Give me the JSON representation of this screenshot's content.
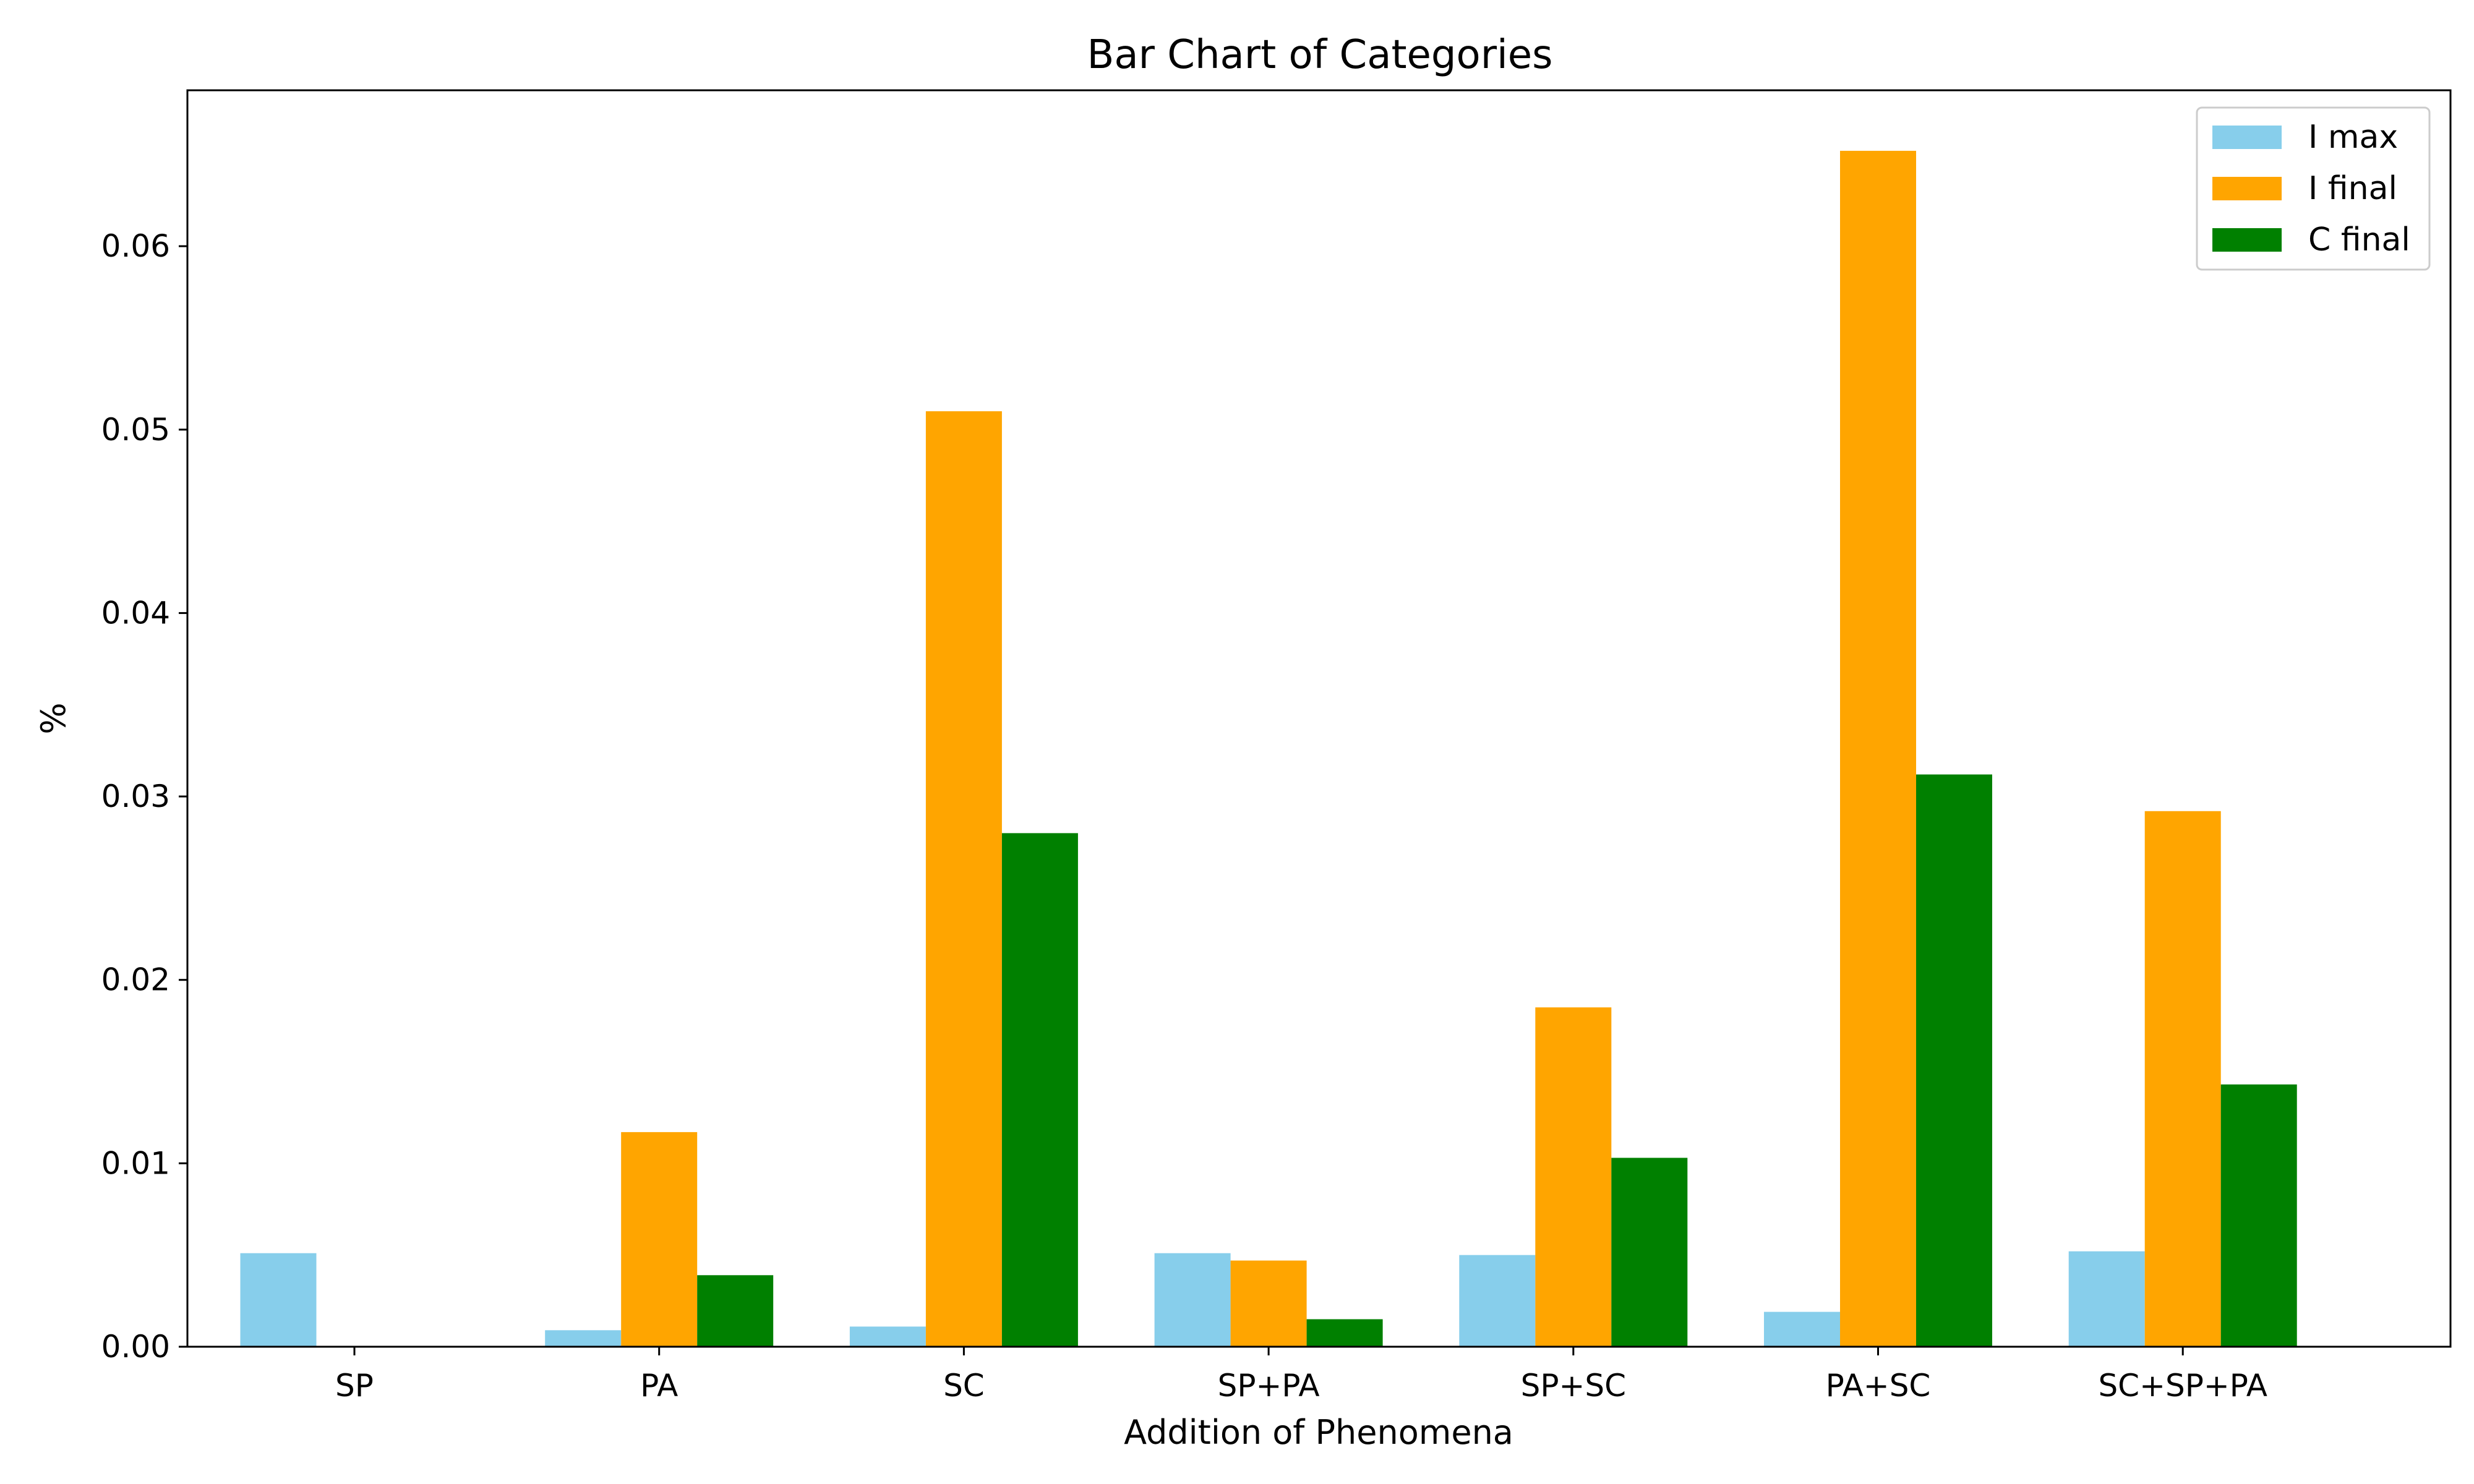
{
  "chart_data": {
    "type": "bar",
    "title": "Bar Chart of Categories",
    "xlabel": "Addition of Phenomena",
    "ylabel": "%",
    "categories": [
      "SP",
      "PA",
      "SC",
      "SP+PA",
      "SP+SC",
      "PA+SC",
      "SC+SP+PA"
    ],
    "series": [
      {
        "name": "I max",
        "color": "#87ceeb",
        "values": [
          0.0051,
          0.0009,
          0.0011,
          0.0051,
          0.005,
          0.0019,
          0.0052
        ]
      },
      {
        "name": "I final",
        "color": "#ffa500",
        "values": [
          0.0,
          0.0117,
          0.051,
          0.0047,
          0.0185,
          0.0652,
          0.0292
        ]
      },
      {
        "name": "C final",
        "color": "#008000",
        "values": [
          0.0,
          0.0039,
          0.028,
          0.0015,
          0.0103,
          0.0312,
          0.0143
        ]
      }
    ],
    "ylim": [
      0,
      0.0685
    ],
    "yticks": [
      "0.00",
      "0.01",
      "0.02",
      "0.03",
      "0.04",
      "0.05",
      "0.06"
    ],
    "grid": false,
    "legend_position": "top-right"
  }
}
